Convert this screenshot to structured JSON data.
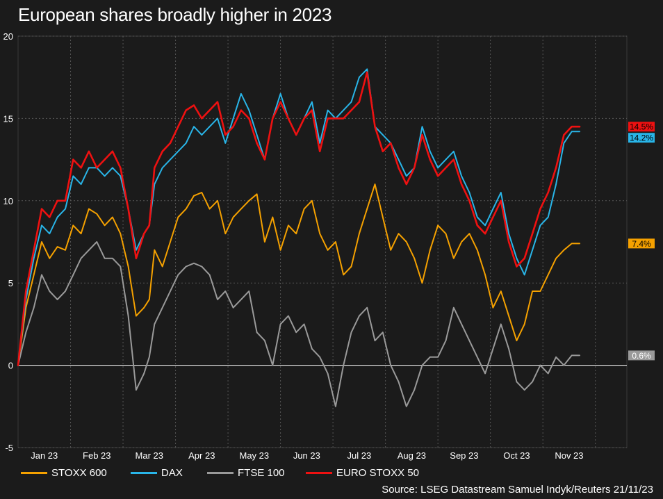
{
  "chart_data": {
    "type": "line",
    "title": "European shares broadly higher in 2023",
    "source": "Source: LSEG Datastream Samuel Indyk/Reuters 21/11/23",
    "ylim": [
      -5,
      20
    ],
    "yticks": [
      "20",
      "15",
      "10",
      "5",
      "0",
      "-5"
    ],
    "ytick_values": [
      20,
      15,
      10,
      5,
      0,
      -5
    ],
    "grid": true,
    "x_range": [
      0,
      11.6
    ],
    "xticks": [
      {
        "label": "Jan 23",
        "x": 0.5
      },
      {
        "label": "Feb 23",
        "x": 1.5
      },
      {
        "label": "Mar 23",
        "x": 2.5
      },
      {
        "label": "Apr 23",
        "x": 3.5
      },
      {
        "label": "May 23",
        "x": 4.5
      },
      {
        "label": "Jun 23",
        "x": 5.5
      },
      {
        "label": "Jul 23",
        "x": 6.5
      },
      {
        "label": "Aug 23",
        "x": 7.5
      },
      {
        "label": "Sep 23",
        "x": 8.5
      },
      {
        "label": "Oct 23",
        "x": 9.5
      },
      {
        "label": "Nov 23",
        "x": 10.5
      }
    ],
    "x": [
      0.0,
      0.15,
      0.3,
      0.45,
      0.6,
      0.75,
      0.9,
      1.05,
      1.2,
      1.35,
      1.5,
      1.65,
      1.8,
      1.95,
      2.1,
      2.25,
      2.4,
      2.5,
      2.6,
      2.75,
      2.9,
      3.05,
      3.2,
      3.35,
      3.5,
      3.65,
      3.8,
      3.95,
      4.1,
      4.25,
      4.4,
      4.55,
      4.7,
      4.85,
      5.0,
      5.15,
      5.3,
      5.45,
      5.6,
      5.75,
      5.9,
      6.05,
      6.2,
      6.35,
      6.5,
      6.65,
      6.8,
      6.95,
      7.1,
      7.25,
      7.4,
      7.55,
      7.7,
      7.85,
      8.0,
      8.15,
      8.3,
      8.45,
      8.6,
      8.75,
      8.9,
      9.05,
      9.2,
      9.35,
      9.5,
      9.65,
      9.8,
      9.95,
      10.1,
      10.25,
      10.4,
      10.55,
      10.7
    ],
    "series": [
      {
        "name": "STOXX 600",
        "color": "#f5a100",
        "end_label": "7.4%",
        "values": [
          0.0,
          3.5,
          5.5,
          7.5,
          6.5,
          7.2,
          7.0,
          8.5,
          8.0,
          9.5,
          9.2,
          8.5,
          9.0,
          8.0,
          6.0,
          3.0,
          3.5,
          4.0,
          7.0,
          6.0,
          7.5,
          9.0,
          9.5,
          10.3,
          10.5,
          9.5,
          10.0,
          8.0,
          9.0,
          9.5,
          10.0,
          10.4,
          7.5,
          9.0,
          7.0,
          8.5,
          8.0,
          9.5,
          10.0,
          8.0,
          7.0,
          7.5,
          5.5,
          6.0,
          8.0,
          9.5,
          11.0,
          9.0,
          7.0,
          8.0,
          7.5,
          6.5,
          5.0,
          7.0,
          8.5,
          8.0,
          6.5,
          7.5,
          8.0,
          7.0,
          5.5,
          3.5,
          4.5,
          3.0,
          1.5,
          2.5,
          4.5,
          4.5,
          5.5,
          6.5,
          7.0,
          7.4,
          7.4
        ]
      },
      {
        "name": "DAX",
        "color": "#29b5e8",
        "end_label": "14.2%",
        "values": [
          0.0,
          4.0,
          6.5,
          8.5,
          8.0,
          9.0,
          9.5,
          11.5,
          11.0,
          12.0,
          12.0,
          11.5,
          12.0,
          11.5,
          9.5,
          7.0,
          8.0,
          8.5,
          11.0,
          12.0,
          12.5,
          13.0,
          13.5,
          14.5,
          14.0,
          14.5,
          15.0,
          13.5,
          15.0,
          16.5,
          15.5,
          14.0,
          12.5,
          15.0,
          16.5,
          15.0,
          14.0,
          15.0,
          16.0,
          13.5,
          15.5,
          15.0,
          15.5,
          16.0,
          17.5,
          18.0,
          14.5,
          14.0,
          13.5,
          12.5,
          11.5,
          12.0,
          14.5,
          13.0,
          12.0,
          12.5,
          13.0,
          11.5,
          10.5,
          9.0,
          8.5,
          9.5,
          10.5,
          8.0,
          6.5,
          5.5,
          7.0,
          8.5,
          9.0,
          11.0,
          13.5,
          14.2,
          14.2
        ]
      },
      {
        "name": "FTSE 100",
        "color": "#9a9a9a",
        "end_label": "0.6%",
        "values": [
          0.0,
          2.0,
          3.5,
          5.5,
          4.5,
          4.0,
          4.5,
          5.5,
          6.5,
          7.0,
          7.5,
          6.5,
          6.5,
          6.0,
          3.0,
          -1.5,
          -0.5,
          0.5,
          2.5,
          3.5,
          4.5,
          5.5,
          6.0,
          6.2,
          6.0,
          5.5,
          4.0,
          4.5,
          3.5,
          4.0,
          4.5,
          2.0,
          1.5,
          0.0,
          2.5,
          3.0,
          2.0,
          2.5,
          1.0,
          0.5,
          -0.5,
          -2.5,
          0.0,
          2.0,
          3.0,
          3.5,
          1.5,
          2.0,
          0.0,
          -1.0,
          -2.5,
          -1.5,
          0.0,
          0.5,
          0.5,
          1.5,
          3.5,
          2.5,
          1.5,
          0.5,
          -0.5,
          1.0,
          2.5,
          1.0,
          -1.0,
          -1.5,
          -1.0,
          0.0,
          -0.5,
          0.5,
          0.0,
          0.6,
          0.6
        ]
      },
      {
        "name": "EURO STOXX 50",
        "color": "#ee1111",
        "end_label": "14.5%",
        "values": [
          0.0,
          4.5,
          7.0,
          9.5,
          9.0,
          10.0,
          10.0,
          12.5,
          12.0,
          13.0,
          12.0,
          12.5,
          13.0,
          12.0,
          9.5,
          6.5,
          8.0,
          8.5,
          12.0,
          13.0,
          13.5,
          14.5,
          15.5,
          15.8,
          15.0,
          15.5,
          16.0,
          14.0,
          14.5,
          15.5,
          15.0,
          13.5,
          12.5,
          15.0,
          16.0,
          15.0,
          14.0,
          15.0,
          15.5,
          13.0,
          15.0,
          15.0,
          15.0,
          15.5,
          16.0,
          17.8,
          14.5,
          13.0,
          13.5,
          12.0,
          11.0,
          12.0,
          14.0,
          12.5,
          11.5,
          12.0,
          12.5,
          11.0,
          10.0,
          8.5,
          8.0,
          9.0,
          10.0,
          7.5,
          6.0,
          6.5,
          8.0,
          9.5,
          10.5,
          12.0,
          14.0,
          14.5,
          14.5
        ]
      }
    ],
    "legend_position": "bottom-left"
  }
}
